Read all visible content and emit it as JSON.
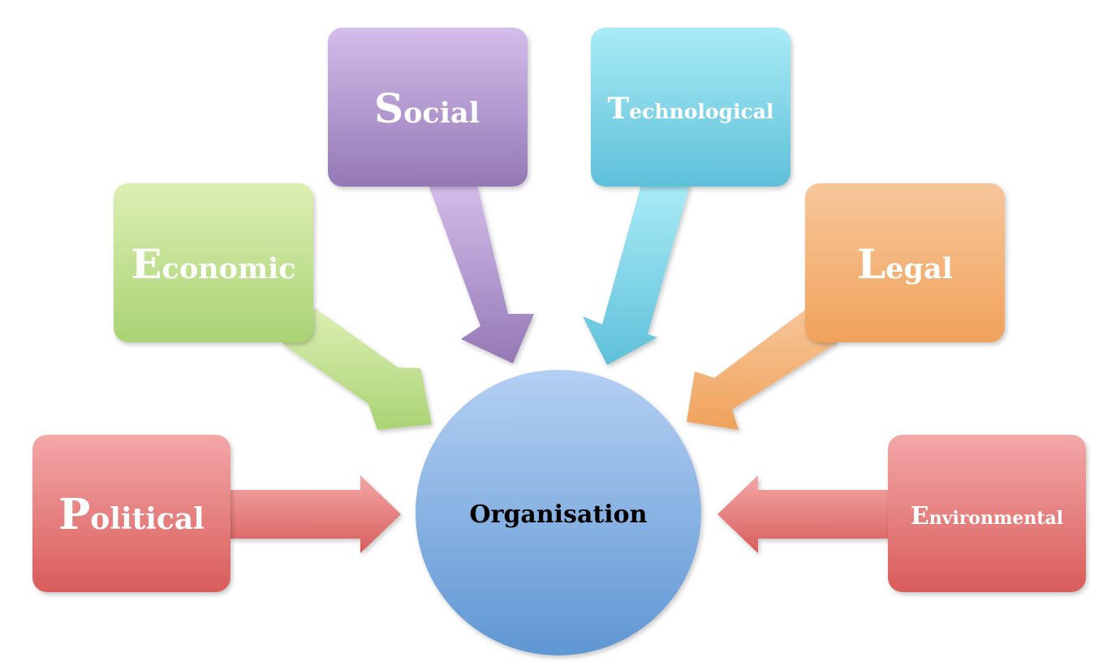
{
  "center": {
    "label": "Organisation",
    "color_top": "#b4cff3",
    "color_bottom": "#5f97d3"
  },
  "factors": [
    {
      "key": "political",
      "initial": "P",
      "rest": "olitical",
      "color_top": "#f3a7a7",
      "color_bottom": "#d85d5b"
    },
    {
      "key": "economic",
      "initial": "E",
      "rest": "conomic",
      "color_top": "#dcefb2",
      "color_bottom": "#a9d374"
    },
    {
      "key": "social",
      "initial": "S",
      "rest": "ocial",
      "color_top": "#d3bdea",
      "color_bottom": "#9478b5"
    },
    {
      "key": "technological",
      "initial": "T",
      "rest": "echnological",
      "color_top": "#a9ebf6",
      "color_bottom": "#5ec0d9"
    },
    {
      "key": "legal",
      "initial": "L",
      "rest": "egal",
      "color_top": "#f6c79a",
      "color_bottom": "#f0a25b"
    },
    {
      "key": "environmental",
      "initial": "E",
      "rest": "nvironmental",
      "color_top": "#f3a7a7",
      "color_bottom": "#d85d5b"
    }
  ]
}
